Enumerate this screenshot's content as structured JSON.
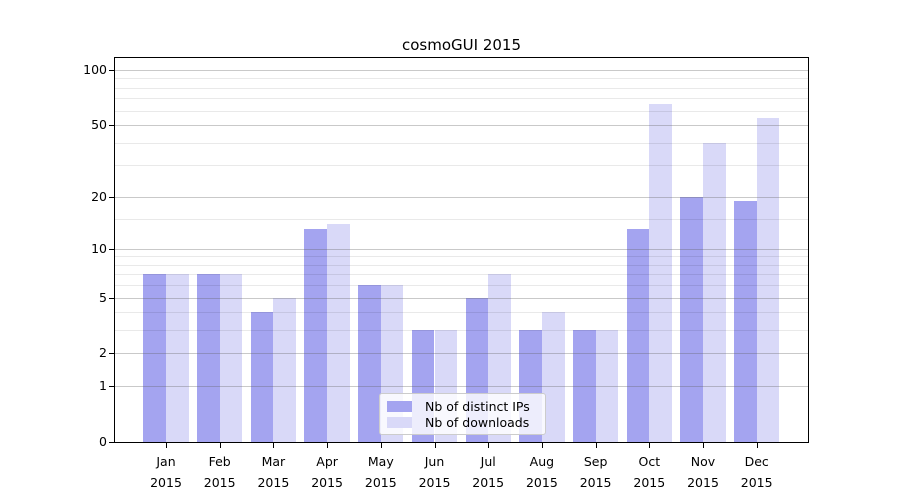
{
  "chart_data": {
    "type": "bar",
    "title": "cosmoGUI 2015",
    "categories": [
      "Jan 2015",
      "Feb 2015",
      "Mar 2015",
      "Apr 2015",
      "May 2015",
      "Jun 2015",
      "Jul 2015",
      "Aug 2015",
      "Sep 2015",
      "Oct 2015",
      "Nov 2015",
      "Dec 2015"
    ],
    "series": [
      {
        "name": "Nb of distinct IPs",
        "color": "#a4a4f0",
        "values": [
          7,
          7,
          4,
          13,
          6,
          3,
          5,
          3,
          3,
          13,
          20,
          19
        ]
      },
      {
        "name": "Nb of downloads",
        "color": "#d9d9f8",
        "values": [
          7,
          7,
          5,
          14,
          6,
          3,
          7,
          4,
          3,
          65,
          40,
          55
        ]
      }
    ],
    "xlabel": "",
    "ylabel": "",
    "yscale": "log10(1+y)",
    "yticks": [
      0,
      1,
      2,
      5,
      10,
      20,
      50,
      100
    ],
    "minor_yticks": [
      3,
      4,
      6,
      7,
      8,
      9,
      15,
      30,
      40,
      60,
      70,
      80,
      90
    ],
    "ylim": [
      0,
      101
    ],
    "grid": true,
    "legend_position": "lower center"
  },
  "colors": {
    "major_grid": "rgba(100,100,100,0.35)",
    "minor_grid": "rgba(0,0,0,0.085)",
    "axis": "#000000",
    "background": "#ffffff"
  }
}
